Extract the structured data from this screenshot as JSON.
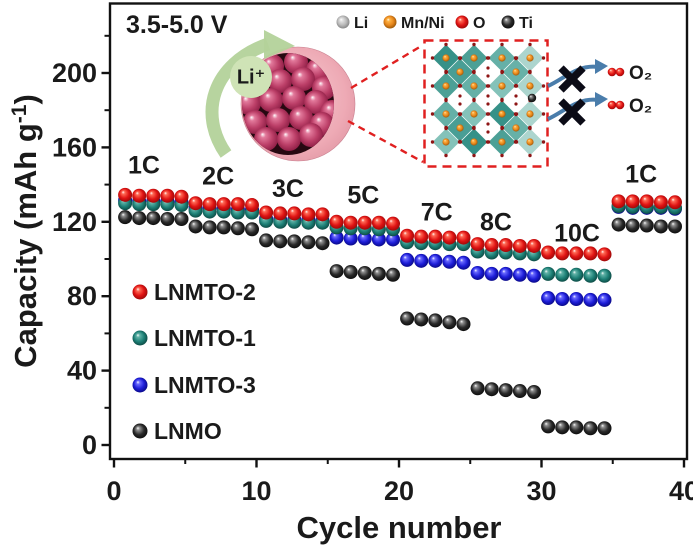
{
  "annotation": {
    "voltage_window": "3.5-5.0 V"
  },
  "atom_legend": {
    "items": [
      {
        "label": "Li",
        "color": "#c0c0c0"
      },
      {
        "label": "Mn/Ni",
        "color": "#e8891c"
      },
      {
        "label": "O",
        "color": "#d81414"
      },
      {
        "label": "Ti",
        "color": "#141414"
      }
    ]
  },
  "schematic": {
    "li_ion_label": "Li⁺",
    "o2_labels": [
      "O₂",
      "O₂"
    ]
  },
  "series_legend": {
    "items": [
      {
        "label": "LNMTO-2",
        "color": "#cf1212"
      },
      {
        "label": "LNMTO-1",
        "color": "#1b7a70"
      },
      {
        "label": "LNMTO-3",
        "color": "#1717c4"
      },
      {
        "label": "LNMO",
        "color": "#141414"
      }
    ]
  },
  "chart_data": {
    "type": "scatter",
    "title": "",
    "xlabel": "Cycle number",
    "ylabel": "Capacity (mAh g⁻¹)",
    "ylabel_parts": {
      "pre": "Capacity (mAh g",
      "sup": "-1",
      "post": ")"
    },
    "xlim": [
      0,
      40
    ],
    "ylim": [
      -8,
      237
    ],
    "grid": false,
    "legend_position": "lower-left",
    "x_major_ticks": [
      0,
      10,
      20,
      30,
      40
    ],
    "x_minor_ticks": [
      5,
      15,
      25,
      35
    ],
    "y_major_ticks": [
      0,
      40,
      80,
      120,
      160,
      200
    ],
    "y_minor_ticks": [
      20,
      60,
      100,
      140,
      180,
      220
    ],
    "segments": [
      {
        "rate": "1C",
        "cycles": [
          1,
          5
        ]
      },
      {
        "rate": "2C",
        "cycles": [
          6,
          10
        ]
      },
      {
        "rate": "3C",
        "cycles": [
          11,
          15
        ]
      },
      {
        "rate": "5C",
        "cycles": [
          16,
          20
        ]
      },
      {
        "rate": "7C",
        "cycles": [
          21,
          25
        ]
      },
      {
        "rate": "8C",
        "cycles": [
          26,
          30
        ]
      },
      {
        "rate": "10C",
        "cycles": [
          31,
          35
        ]
      },
      {
        "rate": "1C",
        "cycles": [
          36,
          40
        ]
      }
    ],
    "rate_labels": [
      {
        "label": "1C",
        "x": 2.34,
        "y": 149.5
      },
      {
        "label": "2C",
        "x": 7.6,
        "y": 143.5
      },
      {
        "label": "3C",
        "x": 12.55,
        "y": 137.0
      },
      {
        "label": "5C",
        "x": 17.9,
        "y": 133.3
      },
      {
        "label": "7C",
        "x": 23.1,
        "y": 124.2
      },
      {
        "label": "8C",
        "x": 27.3,
        "y": 118.8
      },
      {
        "label": "10C",
        "x": 33.05,
        "y": 112.9
      },
      {
        "label": "1C",
        "x": 37.6,
        "y": 144.6
      }
    ],
    "x": [
      1,
      2,
      3,
      4,
      5,
      6,
      7,
      8,
      9,
      10,
      11,
      12,
      13,
      14,
      15,
      16,
      17,
      18,
      19,
      20,
      21,
      22,
      23,
      24,
      25,
      26,
      27,
      28,
      29,
      30,
      31,
      32,
      33,
      34,
      35,
      36,
      37,
      38,
      39,
      40
    ],
    "series": [
      {
        "name": "LNMTO-2",
        "color": "#d81414",
        "z": 3,
        "values": [
          134.5,
          134,
          134,
          134,
          133.5,
          130,
          129.5,
          129.5,
          129.5,
          129,
          125,
          124.5,
          124.5,
          124,
          124,
          120,
          119.5,
          119.5,
          119.5,
          119,
          112.5,
          112,
          112,
          111.5,
          111.5,
          108,
          107.5,
          107.5,
          107,
          107,
          103.5,
          103,
          103,
          103,
          102.5,
          131,
          131,
          131,
          130.5,
          130.5
        ]
      },
      {
        "name": "LNMTO-1",
        "color": "#1b7a70",
        "z": 2,
        "values": [
          130,
          129.5,
          129.5,
          129.5,
          129,
          126,
          125.5,
          125.5,
          125,
          125,
          120.5,
          120,
          120,
          119.5,
          119.5,
          117,
          116.5,
          116.5,
          116,
          116,
          109,
          108.5,
          108.5,
          108,
          108,
          104,
          103.5,
          103.5,
          103,
          102.5,
          92,
          91.5,
          91.5,
          91,
          91,
          128.5,
          128,
          128,
          128,
          127.5
        ]
      },
      {
        "name": "LNMTO-3",
        "color": "#1a1ad2",
        "z": 1,
        "values": [
          131.5,
          131,
          131,
          131,
          130.5,
          127.5,
          127,
          127,
          126.5,
          126.5,
          121.5,
          121,
          121,
          121,
          120.5,
          111.5,
          111,
          111,
          110.5,
          110.5,
          99.5,
          99,
          99,
          98.5,
          98,
          92.5,
          92,
          92,
          91.5,
          91,
          79,
          78.5,
          78.5,
          78,
          78,
          128,
          127.5,
          127.5,
          127.5,
          127
        ]
      },
      {
        "name": "LNMO",
        "color": "#141414",
        "z": 0,
        "values": [
          122.5,
          122,
          122,
          121.5,
          121.5,
          117.5,
          117,
          117,
          116.5,
          116,
          110,
          109.5,
          109.5,
          109,
          108.5,
          93.5,
          93,
          92.5,
          92,
          91.5,
          68,
          67.5,
          67,
          66,
          65,
          30.5,
          30,
          29.5,
          29,
          28.5,
          10,
          9.5,
          9.5,
          9,
          9,
          118.5,
          118,
          118,
          117.5,
          117.5
        ]
      }
    ]
  }
}
